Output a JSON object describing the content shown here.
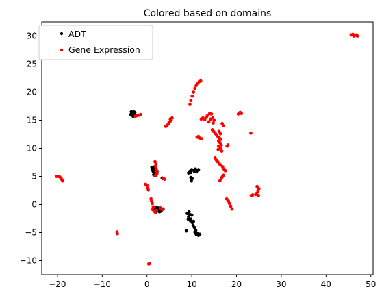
{
  "chart_data": {
    "type": "scatter",
    "title": "Colored based on domains",
    "xlabel": "",
    "ylabel": "",
    "xlim": [
      -23.5,
      50.5
    ],
    "ylim": [
      -12.5,
      32.5
    ],
    "xticks": [
      -20,
      -10,
      0,
      10,
      20,
      30,
      40,
      50
    ],
    "yticks": [
      -10,
      -5,
      0,
      5,
      10,
      15,
      20,
      25,
      30
    ],
    "xtick_labels": [
      "−20",
      "−10",
      "0",
      "10",
      "20",
      "30",
      "40",
      "50"
    ],
    "ytick_labels": [
      "−10",
      "−5",
      "0",
      "5",
      "10",
      "15",
      "20",
      "25",
      "30"
    ],
    "grid": false,
    "legend_position": "top-left",
    "series": [
      {
        "name": "ADT",
        "color": "#000000",
        "points": [
          [
            -3.6,
            16.0
          ],
          [
            -3.3,
            16.3
          ],
          [
            -3.0,
            16.5
          ],
          [
            -2.8,
            16.2
          ],
          [
            -3.4,
            15.9
          ],
          [
            -3.1,
            15.7
          ],
          [
            -2.9,
            16.0
          ],
          [
            -3.5,
            16.5
          ],
          [
            -3.0,
            16.1
          ],
          [
            -2.7,
            16.4
          ],
          [
            1.1,
            6.6
          ],
          [
            1.3,
            6.4
          ],
          [
            1.5,
            6.0
          ],
          [
            1.6,
            5.7
          ],
          [
            1.8,
            5.4
          ],
          [
            2.0,
            5.2
          ],
          [
            1.4,
            5.9
          ],
          [
            1.2,
            6.2
          ],
          [
            1.7,
            6.7
          ],
          [
            2.2,
            5.5
          ],
          [
            1.9,
            6.3
          ],
          [
            1.5,
            5.3
          ],
          [
            1.5,
            -0.8
          ],
          [
            1.8,
            -1.0
          ],
          [
            2.2,
            -1.2
          ],
          [
            2.6,
            -0.9
          ],
          [
            3.0,
            -0.7
          ],
          [
            3.3,
            -1.0
          ],
          [
            3.6,
            -0.8
          ],
          [
            2.4,
            -0.6
          ],
          [
            2.8,
            -1.3
          ],
          [
            2.0,
            -0.5
          ],
          [
            3.1,
            -1.2
          ],
          [
            1.9,
            -1.4
          ],
          [
            3.4,
            4.7
          ],
          [
            3.7,
            4.6
          ],
          [
            9.3,
            5.6
          ],
          [
            9.6,
            5.9
          ],
          [
            10.0,
            6.2
          ],
          [
            10.4,
            6.1
          ],
          [
            10.8,
            6.3
          ],
          [
            11.2,
            6.0
          ],
          [
            11.5,
            6.2
          ],
          [
            11.0,
            5.8
          ],
          [
            9.8,
            5.7
          ],
          [
            10.6,
            5.9
          ],
          [
            9.9,
            4.2
          ],
          [
            10.1,
            4.6
          ],
          [
            9.8,
            4.8
          ],
          [
            9.0,
            -1.6
          ],
          [
            9.3,
            -2.2
          ],
          [
            9.6,
            -1.8
          ],
          [
            9.8,
            -2.6
          ],
          [
            10.1,
            -3.2
          ],
          [
            10.3,
            -3.7
          ],
          [
            10.6,
            -4.1
          ],
          [
            10.9,
            -4.6
          ],
          [
            11.2,
            -5.1
          ],
          [
            11.5,
            -5.5
          ],
          [
            11.0,
            -5.3
          ],
          [
            10.7,
            -4.9
          ],
          [
            9.4,
            -1.3
          ],
          [
            9.7,
            -2.9
          ],
          [
            10.4,
            -3.0
          ],
          [
            11.8,
            -5.3
          ],
          [
            9.2,
            -2.6
          ],
          [
            10.0,
            -1.9
          ],
          [
            8.8,
            -4.7
          ]
        ]
      },
      {
        "name": "Gene Expression",
        "color": "#ff0000",
        "points": [
          [
            -20.2,
            5.0
          ],
          [
            -19.8,
            5.0
          ],
          [
            -19.5,
            4.9
          ],
          [
            -19.2,
            4.7
          ],
          [
            -19.0,
            4.4
          ],
          [
            -18.8,
            4.2
          ],
          [
            -6.7,
            -4.9
          ],
          [
            -6.6,
            -5.2
          ],
          [
            0.6,
            -10.5
          ],
          [
            0.4,
            -10.6
          ],
          [
            -0.3,
            3.6
          ],
          [
            0.0,
            3.4
          ],
          [
            0.2,
            2.9
          ],
          [
            0.3,
            2.6
          ],
          [
            0.9,
            1.0
          ],
          [
            1.0,
            0.6
          ],
          [
            1.2,
            0.2
          ],
          [
            1.4,
            -0.4
          ],
          [
            1.3,
            -0.9
          ],
          [
            1.6,
            -1.2
          ],
          [
            1.9,
            -1.4
          ],
          [
            2.1,
            -1.1
          ],
          [
            1.8,
            7.6
          ],
          [
            2.0,
            7.2
          ],
          [
            1.9,
            6.8
          ],
          [
            2.1,
            6.3
          ],
          [
            2.3,
            5.9
          ],
          [
            2.2,
            5.4
          ],
          [
            1.8,
            5.1
          ],
          [
            3.6,
            4.6
          ],
          [
            3.9,
            4.5
          ],
          [
            4.2,
            13.9
          ],
          [
            4.5,
            14.1
          ],
          [
            4.8,
            14.4
          ],
          [
            5.1,
            14.7
          ],
          [
            5.4,
            15.0
          ],
          [
            5.6,
            15.4
          ],
          [
            5.2,
            15.2
          ],
          [
            -2.6,
            15.7
          ],
          [
            -2.2,
            15.8
          ],
          [
            -1.8,
            15.9
          ],
          [
            -1.4,
            16.0
          ],
          [
            3.0,
            -0.6
          ],
          [
            3.4,
            -0.9
          ],
          [
            9.6,
            17.8
          ],
          [
            9.8,
            18.5
          ],
          [
            10.1,
            19.3
          ],
          [
            10.4,
            20.0
          ],
          [
            10.7,
            20.7
          ],
          [
            11.0,
            21.2
          ],
          [
            11.4,
            21.6
          ],
          [
            11.7,
            21.9
          ],
          [
            12.0,
            22.0
          ],
          [
            12.1,
            15.2
          ],
          [
            12.5,
            15.4
          ],
          [
            12.9,
            15.1
          ],
          [
            13.3,
            15.6
          ],
          [
            13.6,
            15.9
          ],
          [
            14.0,
            16.2
          ],
          [
            14.4,
            16.1
          ],
          [
            14.7,
            15.4
          ],
          [
            14.2,
            15.2
          ],
          [
            15.0,
            15.0
          ],
          [
            14.8,
            14.5
          ],
          [
            13.8,
            14.7
          ],
          [
            11.2,
            12.0
          ],
          [
            11.6,
            11.9
          ],
          [
            11.9,
            11.8
          ],
          [
            12.2,
            11.7
          ],
          [
            11.5,
            12.1
          ],
          [
            14.6,
            13.3
          ],
          [
            14.9,
            13.0
          ],
          [
            15.3,
            12.6
          ],
          [
            15.6,
            12.3
          ],
          [
            15.9,
            12.0
          ],
          [
            16.2,
            11.8
          ],
          [
            16.5,
            11.6
          ],
          [
            16.0,
            11.3
          ],
          [
            16.3,
            11.0
          ],
          [
            16.6,
            10.6
          ],
          [
            16.0,
            10.4
          ],
          [
            16.4,
            10.0
          ],
          [
            15.9,
            9.8
          ],
          [
            16.7,
            9.5
          ],
          [
            16.1,
            13.0
          ],
          [
            16.4,
            12.6
          ],
          [
            15.2,
            8.3
          ],
          [
            15.5,
            7.9
          ],
          [
            15.8,
            7.6
          ],
          [
            16.2,
            7.2
          ],
          [
            16.5,
            7.0
          ],
          [
            16.9,
            6.7
          ],
          [
            17.2,
            6.3
          ],
          [
            17.5,
            6.0
          ],
          [
            17.1,
            5.2
          ],
          [
            16.8,
            4.9
          ],
          [
            16.6,
            4.6
          ],
          [
            16.3,
            4.2
          ],
          [
            17.9,
            10.4
          ],
          [
            18.1,
            10.6
          ],
          [
            16.8,
            14.4
          ],
          [
            17.1,
            14.0
          ],
          [
            17.8,
            1.0
          ],
          [
            18.2,
            0.6
          ],
          [
            18.4,
            0.2
          ],
          [
            18.7,
            -0.3
          ],
          [
            19.0,
            -0.8
          ],
          [
            20.4,
            16.1
          ],
          [
            20.8,
            16.4
          ],
          [
            21.1,
            16.2
          ],
          [
            23.2,
            12.7
          ],
          [
            23.3,
            1.6
          ],
          [
            23.6,
            1.7
          ],
          [
            24.5,
            2.0
          ],
          [
            24.8,
            2.4
          ],
          [
            25.0,
            2.8
          ],
          [
            24.6,
            3.2
          ],
          [
            24.3,
            1.8
          ],
          [
            24.9,
            1.6
          ],
          [
            45.6,
            30.2
          ],
          [
            46.0,
            30.3
          ],
          [
            46.4,
            30.1
          ],
          [
            46.8,
            30.2
          ],
          [
            47.0,
            30.0
          ],
          [
            46.2,
            30.0
          ]
        ]
      }
    ]
  }
}
